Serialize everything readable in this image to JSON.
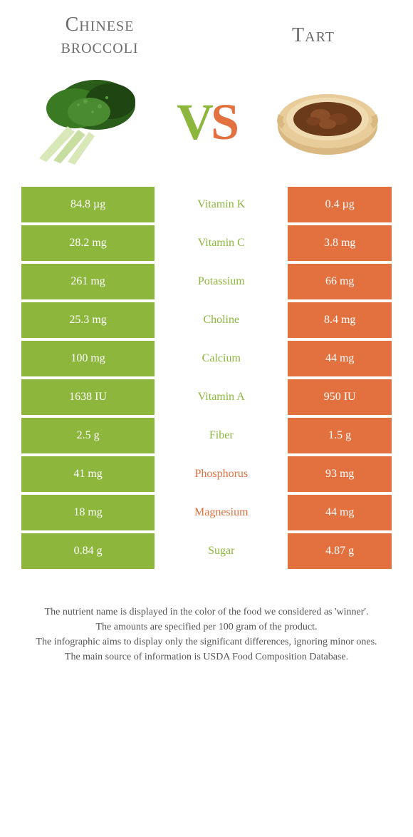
{
  "header": {
    "food1_line1": "Chinese",
    "food1_line2": "broccoli",
    "food2": "Tart",
    "vs_v": "V",
    "vs_s": "S"
  },
  "colors": {
    "green": "#8cb63c",
    "orange": "#e3703f",
    "text": "#555555",
    "white": "#ffffff"
  },
  "rows": [
    {
      "left": "84.8 µg",
      "nutrient": "Vitamin K",
      "right": "0.4 µg",
      "winner": "green"
    },
    {
      "left": "28.2 mg",
      "nutrient": "Vitamin C",
      "right": "3.8 mg",
      "winner": "green"
    },
    {
      "left": "261 mg",
      "nutrient": "Potassium",
      "right": "66 mg",
      "winner": "green"
    },
    {
      "left": "25.3 mg",
      "nutrient": "Choline",
      "right": "8.4 mg",
      "winner": "green"
    },
    {
      "left": "100 mg",
      "nutrient": "Calcium",
      "right": "44 mg",
      "winner": "green"
    },
    {
      "left": "1638 IU",
      "nutrient": "Vitamin A",
      "right": "950 IU",
      "winner": "green"
    },
    {
      "left": "2.5 g",
      "nutrient": "Fiber",
      "right": "1.5 g",
      "winner": "green"
    },
    {
      "left": "41 mg",
      "nutrient": "Phosphorus",
      "right": "93 mg",
      "winner": "orange"
    },
    {
      "left": "18 mg",
      "nutrient": "Magnesium",
      "right": "44 mg",
      "winner": "orange"
    },
    {
      "left": "0.84 g",
      "nutrient": "Sugar",
      "right": "4.87 g",
      "winner": "green"
    }
  ],
  "footer": {
    "line1": "The nutrient name is displayed in the color of the food we considered as 'winner'.",
    "line2": "The amounts are specified per 100 gram of the product.",
    "line3": "The infographic aims to display only the significant differences, ignoring minor ones.",
    "line4": "The main source of information is USDA Food Composition Database."
  }
}
